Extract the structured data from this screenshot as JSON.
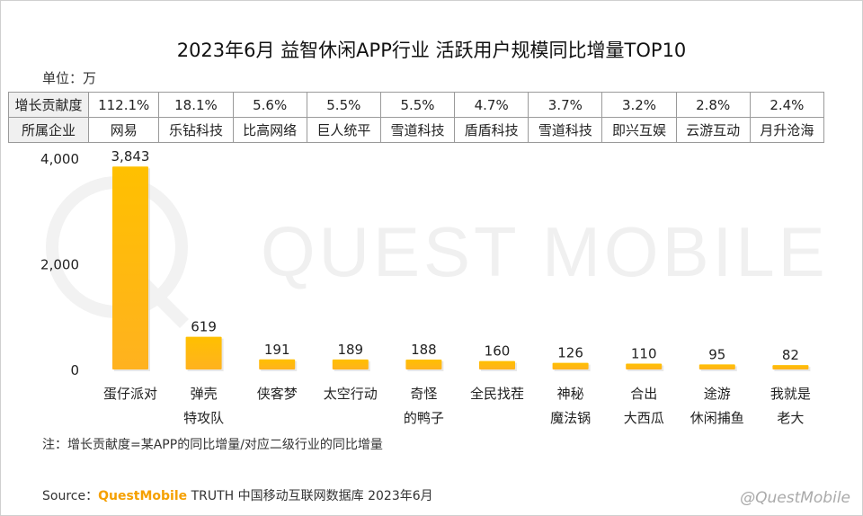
{
  "title": "2023年6月 益智休闲APP行业 活跃用户规模同比增量TOP10",
  "unit_label": "单位：万",
  "table": {
    "row1_header": "增长贡献度",
    "row2_header": "所属企业",
    "contribution": [
      "112.1%",
      "18.1%",
      "5.6%",
      "5.5%",
      "5.5%",
      "4.7%",
      "3.7%",
      "3.2%",
      "2.8%",
      "2.4%"
    ],
    "companies": [
      "网易",
      "乐钻科技",
      "比高网络",
      "巨人统平",
      "雪道科技",
      "盾盾科技",
      "雪道科技",
      "即兴互娱",
      "云游互动",
      "月升沧海"
    ]
  },
  "chart_data": {
    "type": "bar",
    "categories": [
      [
        "蛋仔派对"
      ],
      [
        "弹壳",
        "特攻队"
      ],
      [
        "侠客梦"
      ],
      [
        "太空行动"
      ],
      [
        "奇怪",
        "的鸭子"
      ],
      [
        "全民找茬"
      ],
      [
        "神秘",
        "魔法锅"
      ],
      [
        "合出",
        "大西瓜"
      ],
      [
        "途游",
        "休闲捕鱼"
      ],
      [
        "我就是",
        "老大"
      ]
    ],
    "values": [
      3843,
      619,
      191,
      189,
      188,
      160,
      126,
      110,
      95,
      82
    ],
    "value_labels": [
      "3,843",
      "619",
      "191",
      "189",
      "188",
      "160",
      "126",
      "110",
      "95",
      "82"
    ],
    "yticks": [
      "0",
      "2,000",
      "4,000"
    ],
    "ytick_values": [
      0,
      2000,
      4000
    ],
    "ylim": [
      0,
      4000
    ],
    "bar_color": "#ffc000",
    "grid": false
  },
  "watermark": "QUEST MOBILE",
  "note": "注：增长贡献度=某APP的同比增量/对应二级行业的同比增量",
  "source": {
    "prefix": "Source：",
    "brand": "QuestMobile",
    "rest": " TRUTH 中国移动互联网数据库 2023年6月"
  },
  "credit": "@QuestMobile"
}
